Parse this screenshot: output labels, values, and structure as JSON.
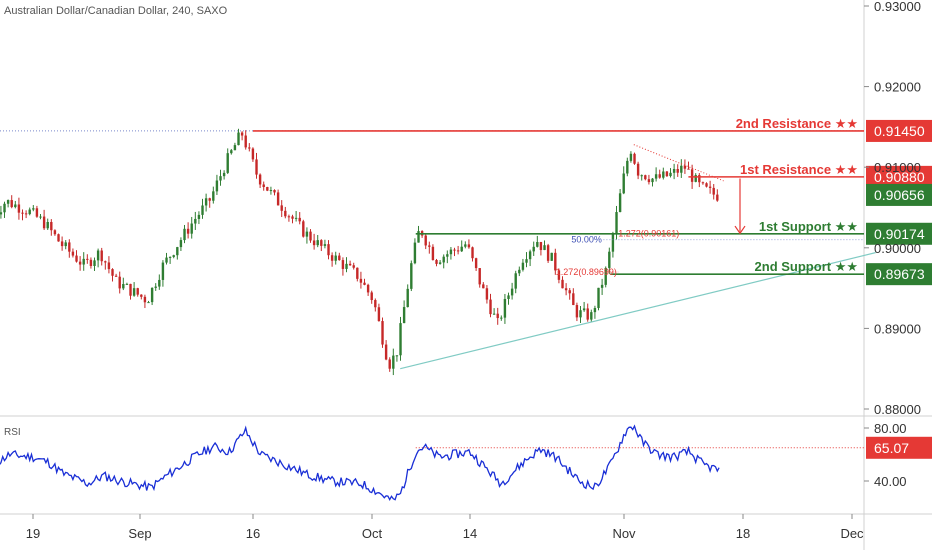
{
  "title": "Australian Dollar/Canadian Dollar, 240, SAXO",
  "colors": {
    "up": "#2f7d32",
    "down": "#c62828",
    "resistance": "#e53935",
    "support": "#2e7d32",
    "trendline": "#80cbc4",
    "rsi": "#1a2fd6",
    "rsi_level": "#e53935",
    "axis_text": "#333333",
    "grid": "#eeeeee"
  },
  "chart_data": [
    {
      "type": "candlestick",
      "title": "Australian Dollar/Canadian Dollar, 240, SAXO",
      "ylim": [
        0.88,
        0.93
      ],
      "y_ticks": [
        "0.88000",
        "0.89000",
        "0.90000",
        "0.91000",
        "0.92000",
        "0.93000"
      ],
      "x_ticks": [
        "19",
        "Sep",
        "16",
        "Oct",
        "14",
        "Nov",
        "18",
        "Dec"
      ],
      "price_path": [
        [
          "Aug 14",
          0.9035
        ],
        [
          "Aug 16",
          0.9058
        ],
        [
          "Aug 19",
          0.9045
        ],
        [
          "Aug 21",
          0.903
        ],
        [
          "Aug 23",
          0.9005
        ],
        [
          "Aug 26",
          0.8978
        ],
        [
          "Aug 28",
          0.8995
        ],
        [
          "Aug 30",
          0.8958
        ],
        [
          "Sep 3",
          0.8935
        ],
        [
          "Sep 5",
          0.8978
        ],
        [
          "Sep 9",
          0.9035
        ],
        [
          "Sep 11",
          0.906
        ],
        [
          "Sep 13",
          0.9105
        ],
        [
          "Sep 15",
          0.9143
        ],
        [
          "Sep 17",
          0.909
        ],
        [
          "Sep 19",
          0.9065
        ],
        [
          "Sep 23",
          0.902
        ],
        [
          "Sep 26",
          0.8995
        ],
        [
          "Sep 30",
          0.8965
        ],
        [
          "Oct 2",
          0.8935
        ],
        [
          "Oct 4",
          0.8855
        ],
        [
          "Oct 5",
          0.887
        ],
        [
          "Oct 7",
          0.8985
        ],
        [
          "Oct 8",
          0.9025
        ],
        [
          "Oct 10",
          0.8985
        ],
        [
          "Oct 14",
          0.9005
        ],
        [
          "Oct 16",
          0.895
        ],
        [
          "Oct 18",
          0.8905
        ],
        [
          "Oct 21",
          0.8985
        ],
        [
          "Oct 23",
          0.901
        ],
        [
          "Oct 25",
          0.8985
        ],
        [
          "Oct 28",
          0.892
        ],
        [
          "Oct 30",
          0.8915
        ],
        [
          "Nov 1",
          0.8975
        ],
        [
          "Nov 3",
          0.908
        ],
        [
          "Nov 4",
          0.9125
        ],
        [
          "Nov 5",
          0.9095
        ],
        [
          "Nov 7",
          0.9085
        ],
        [
          "Nov 9",
          0.909
        ],
        [
          "Nov 11",
          0.91
        ],
        [
          "Nov 13",
          0.9075
        ],
        [
          "Nov 15",
          0.9065
        ]
      ],
      "levels": [
        {
          "label": "2nd Resistance ★★",
          "value": "0.91450",
          "price": 0.9145,
          "kind": "resistance",
          "from": "Sep 16"
        },
        {
          "label": "1st Resistance ★★",
          "value": "0.90880",
          "price": 0.9088,
          "kind": "resistance",
          "from": "Nov 11"
        },
        {
          "label": "1st Support ★★",
          "value": "0.90174",
          "price": 0.90174,
          "kind": "support",
          "from": "Oct 7"
        },
        {
          "label": "2nd Support ★★",
          "value": "0.89673",
          "price": 0.89673,
          "kind": "support",
          "from": "Nov 1"
        }
      ],
      "current_price": {
        "value": "0.90656",
        "price": 0.90656
      },
      "annotations": [
        {
          "text": "50.00%",
          "price": 0.901,
          "at": "Oct 27"
        },
        {
          "text": "1.272(0.90161)",
          "price": 0.9018,
          "at": "Nov 2"
        },
        {
          "text": "1.272(0.89699)",
          "price": 0.897,
          "at": "Oct 25"
        }
      ],
      "trendline": {
        "from": [
          "Oct 5",
          0.885
        ],
        "to": [
          "Dec 5",
          0.8994
        ]
      },
      "dotted_level": {
        "price": 0.9145
      }
    },
    {
      "type": "line",
      "title": "RSI",
      "ylim": [
        20,
        85
      ],
      "y_ticks": [
        "40.00",
        "80.00"
      ],
      "level": {
        "value": "65.07",
        "number": 65.07
      },
      "series": [
        {
          "values": [
            [
              "Aug 14",
              52
            ],
            [
              "Aug 16",
              60
            ],
            [
              "Aug 19",
              58
            ],
            [
              "Aug 21",
              54
            ],
            [
              "Aug 23",
              45
            ],
            [
              "Aug 26",
              38
            ],
            [
              "Aug 28",
              44
            ],
            [
              "Aug 30",
              40
            ],
            [
              "Sep 3",
              35
            ],
            [
              "Sep 5",
              44
            ],
            [
              "Sep 9",
              60
            ],
            [
              "Sep 11",
              66
            ],
            [
              "Sep 13",
              62
            ],
            [
              "Sep 15",
              78
            ],
            [
              "Sep 17",
              60
            ],
            [
              "Sep 19",
              55
            ],
            [
              "Sep 23",
              45
            ],
            [
              "Sep 26",
              40
            ],
            [
              "Sep 30",
              38
            ],
            [
              "Oct 2",
              32
            ],
            [
              "Oct 4",
              25
            ],
            [
              "Oct 5",
              30
            ],
            [
              "Oct 7",
              62
            ],
            [
              "Oct 8",
              66
            ],
            [
              "Oct 10",
              58
            ],
            [
              "Oct 14",
              62
            ],
            [
              "Oct 16",
              50
            ],
            [
              "Oct 18",
              38
            ],
            [
              "Oct 21",
              55
            ],
            [
              "Oct 23",
              64
            ],
            [
              "Oct 25",
              58
            ],
            [
              "Oct 28",
              40
            ],
            [
              "Oct 30",
              35
            ],
            [
              "Nov 1",
              52
            ],
            [
              "Nov 3",
              78
            ],
            [
              "Nov 4",
              82
            ],
            [
              "Nov 5",
              70
            ],
            [
              "Nov 7",
              60
            ],
            [
              "Nov 9",
              58
            ],
            [
              "Nov 11",
              62
            ],
            [
              "Nov 13",
              52
            ],
            [
              "Nov 15",
              48
            ]
          ]
        }
      ]
    }
  ]
}
